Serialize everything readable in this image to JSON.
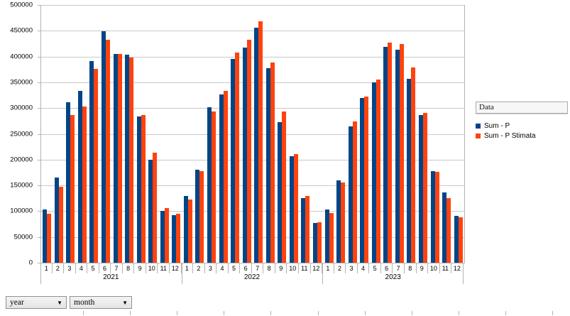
{
  "chart_data": {
    "type": "bar",
    "title": "",
    "grid": true,
    "legend_position": "right",
    "legend_title": "Data",
    "ylim": [
      0,
      500000
    ],
    "ytick_step": 50000,
    "ytick_labels": [
      "0",
      "50000",
      "100000",
      "150000",
      "200000",
      "250000",
      "300000",
      "350000",
      "400000",
      "450000",
      "500000"
    ],
    "years": [
      "2021",
      "2022",
      "2023"
    ],
    "months": [
      "1",
      "2",
      "3",
      "4",
      "5",
      "6",
      "7",
      "8",
      "9",
      "10",
      "11",
      "12"
    ],
    "series": [
      {
        "name": "Sum - P",
        "color": "#004586",
        "values": [
          104000,
          165000,
          311000,
          334000,
          391000,
          449000,
          405000,
          403000,
          284000,
          200000,
          100000,
          92000,
          130000,
          181000,
          301000,
          327000,
          395000,
          418000,
          456000,
          377000,
          273000,
          207000,
          125000,
          77000,
          103000,
          160000,
          264000,
          319000,
          350000,
          419000,
          413000,
          357000,
          287000,
          178000,
          136000,
          91000
        ]
      },
      {
        "name": "Sum - P Stimata",
        "color": "#FF420E",
        "values": [
          95000,
          147000,
          287000,
          303000,
          376000,
          432000,
          405000,
          398000,
          287000,
          214000,
          106000,
          95000,
          122000,
          178000,
          294000,
          333000,
          408000,
          433000,
          469000,
          388000,
          294000,
          211000,
          129000,
          79000,
          96000,
          155000,
          274000,
          323000,
          355000,
          427000,
          424000,
          379000,
          290000,
          176000,
          125000,
          88000
        ]
      }
    ]
  },
  "legend": {
    "field_button": "Data"
  },
  "filters": {
    "year_button": "year",
    "month_button": "month",
    "dropdown_arrow": "▼"
  }
}
